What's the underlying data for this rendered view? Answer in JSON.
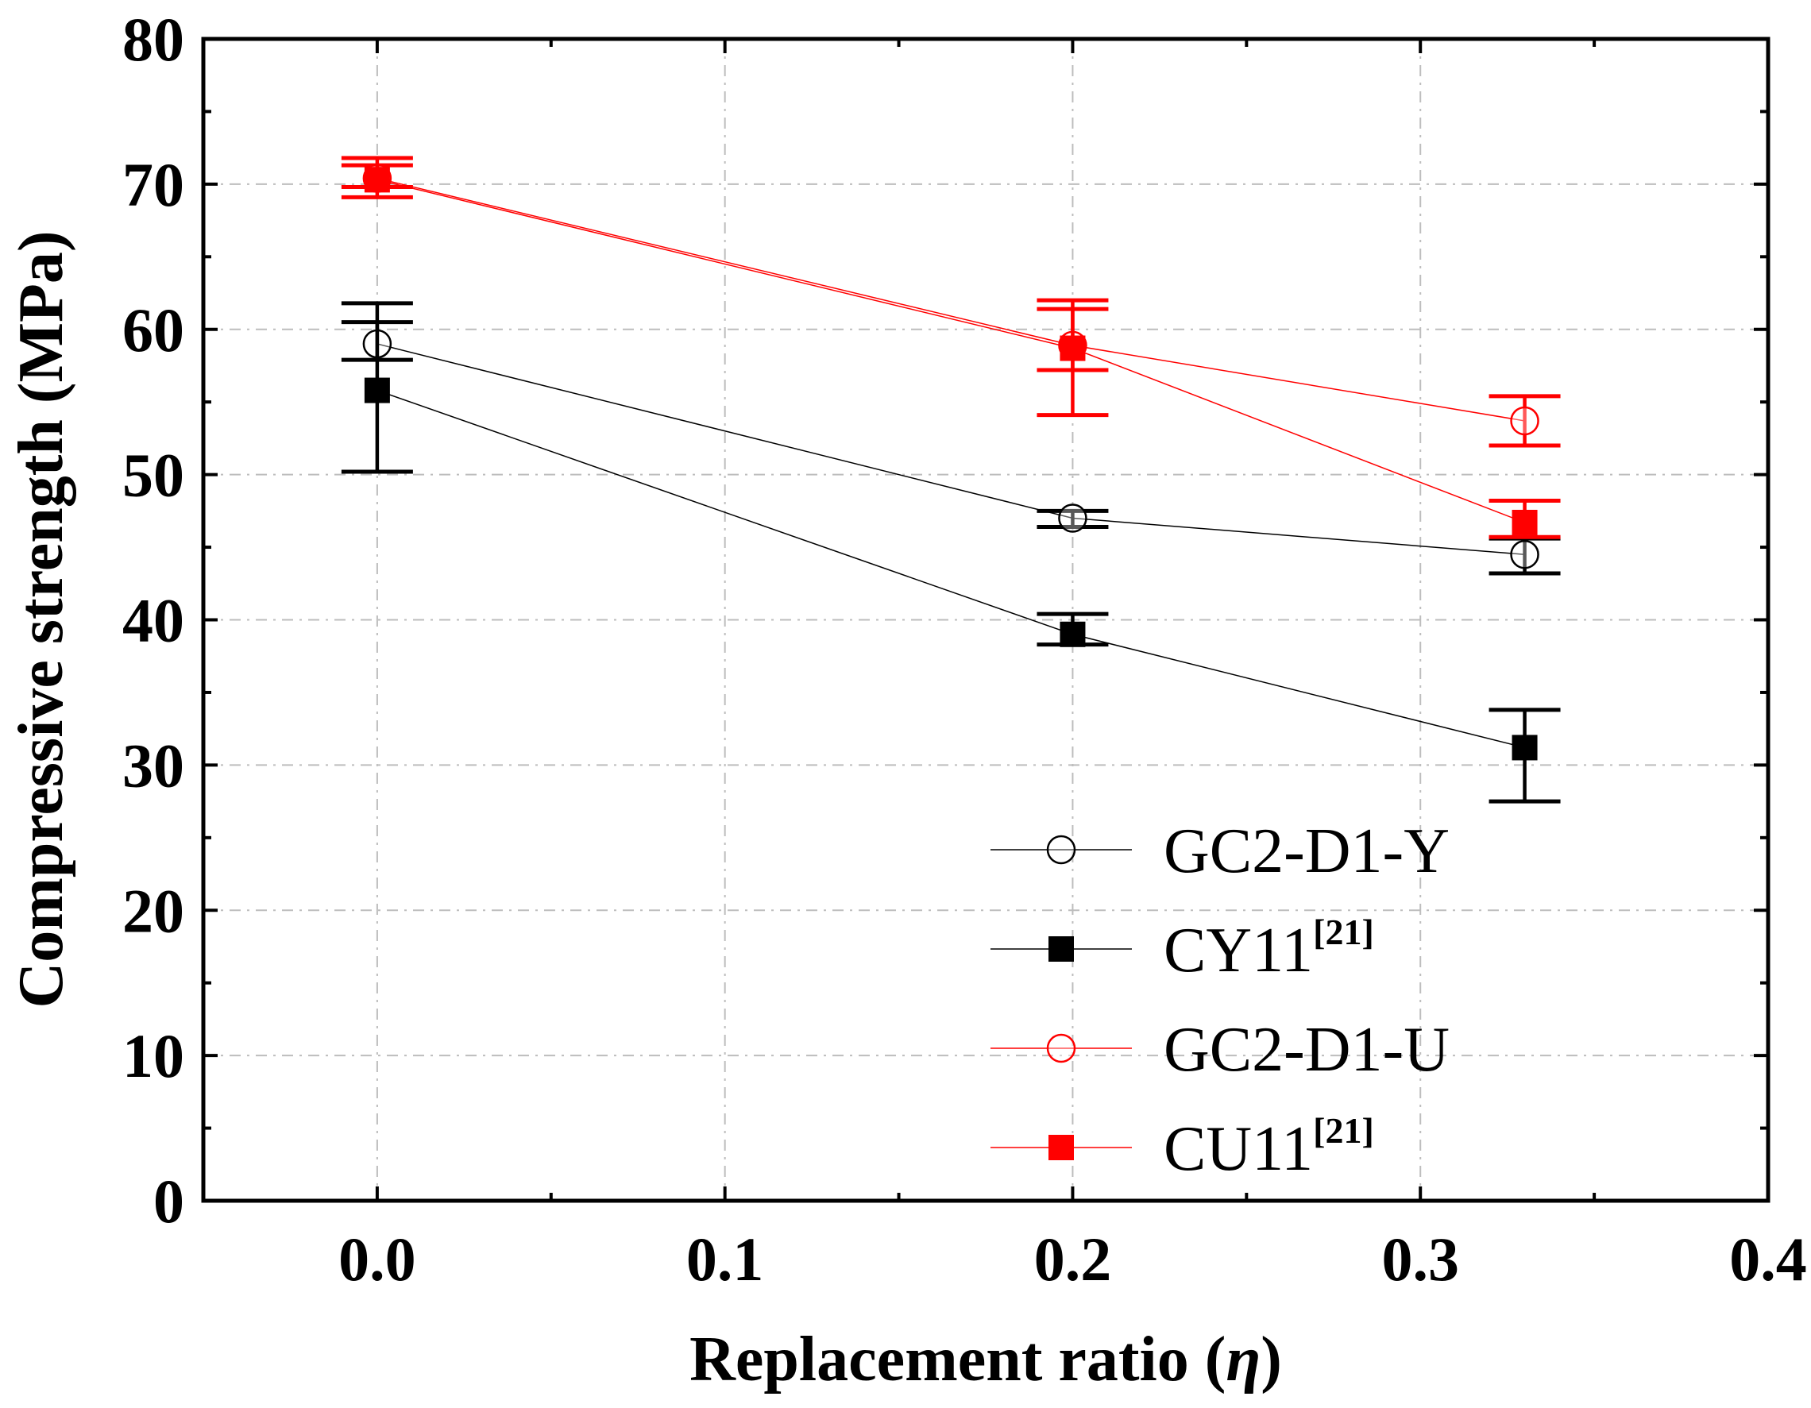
{
  "chart_data": {
    "type": "line",
    "title": "",
    "xlabel": "Replacement ratio (",
    "xlabel_symbol": "η",
    "xlabel_close": ")",
    "ylabel": "Compressive strength (MPa)",
    "xlim": [
      -0.05,
      0.4
    ],
    "ylim": [
      0,
      80
    ],
    "xticks": [
      0.0,
      0.1,
      0.2,
      0.3,
      0.4
    ],
    "xtick_labels": [
      "0.0",
      "0.1",
      "0.2",
      "0.3",
      "0.4"
    ],
    "yticks": [
      0,
      10,
      20,
      30,
      40,
      50,
      60,
      70,
      80
    ],
    "ytick_labels": [
      "0",
      "10",
      "20",
      "30",
      "40",
      "50",
      "60",
      "70",
      "80"
    ],
    "x_minor_ticks": [
      0.05,
      0.15,
      0.25,
      0.35
    ],
    "y_minor_ticks": [
      5,
      15,
      25,
      35,
      45,
      55,
      65,
      75
    ],
    "grid": true,
    "legend_position": "bottom-right",
    "series": [
      {
        "name": "GC2-D1-Y",
        "name_sup": "",
        "marker": "circle-open",
        "color": "#000000",
        "x": [
          0.0,
          0.2,
          0.33
        ],
        "y": [
          59.0,
          47.0,
          44.5
        ],
        "err_low": [
          57.9,
          46.4,
          43.2
        ],
        "err_high": [
          61.8,
          47.5,
          45.6
        ]
      },
      {
        "name": "CY11",
        "name_sup": "[21]",
        "marker": "square-filled",
        "color": "#000000",
        "x": [
          0.0,
          0.2,
          0.33
        ],
        "y": [
          55.8,
          39.0,
          31.2
        ],
        "err_low": [
          50.2,
          38.3,
          27.5
        ],
        "err_high": [
          60.5,
          40.4,
          33.8
        ]
      },
      {
        "name": "GC2-D1-U",
        "name_sup": "",
        "marker": "circle-open",
        "color": "#ff0000",
        "x": [
          0.0,
          0.2,
          0.33
        ],
        "y": [
          70.4,
          58.9,
          53.7
        ],
        "err_low": [
          69.8,
          57.2,
          52.0
        ],
        "err_high": [
          71.3,
          61.4,
          55.4
        ]
      },
      {
        "name": "CU11",
        "name_sup": "[21]",
        "marker": "square-filled",
        "color": "#ff0000",
        "x": [
          0.0,
          0.2,
          0.33
        ],
        "y": [
          70.3,
          58.7,
          46.7
        ],
        "err_low": [
          69.1,
          54.1,
          45.7
        ],
        "err_high": [
          71.8,
          62.0,
          48.2
        ]
      }
    ]
  }
}
